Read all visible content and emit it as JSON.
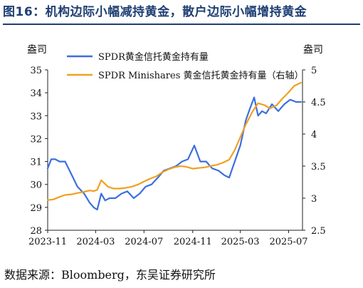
{
  "figure": {
    "title": "图16：机构边际小幅减持黄金，散户边际小幅增持黄金",
    "source": "数据来源：Bloomberg，东吴证券研究所"
  },
  "chart_data": {
    "type": "line",
    "left_axis_label": "盎司",
    "right_axis_label": "盎司",
    "ylim_left": [
      28,
      35
    ],
    "ylim_right": [
      2.5,
      5
    ],
    "yticks_left": [
      "35",
      "34",
      "33",
      "32",
      "31",
      "30",
      "29",
      "28"
    ],
    "yticks_right": [
      "5",
      "4.5",
      "4",
      "3.5",
      "3",
      "2.5"
    ],
    "xlim": [
      "2023-11-01",
      "2025-08-05"
    ],
    "xticks": [
      "2023-11",
      "2024-03",
      "2024-07",
      "2024-11",
      "2025-03",
      "2025-07"
    ],
    "grid": false,
    "legend": "top-left",
    "series": [
      {
        "name": "SPDR黄金信托黄金持有量",
        "axis": "left",
        "color": "#3c6fe0",
        "x": [
          "2023-11-01",
          "2023-11-10",
          "2023-11-20",
          "2023-12-01",
          "2023-12-15",
          "2024-01-01",
          "2024-01-15",
          "2024-02-01",
          "2024-02-15",
          "2024-02-25",
          "2024-03-05",
          "2024-03-15",
          "2024-03-25",
          "2024-04-05",
          "2024-04-20",
          "2024-05-05",
          "2024-05-20",
          "2024-06-05",
          "2024-06-20",
          "2024-07-05",
          "2024-07-20",
          "2024-08-05",
          "2024-08-20",
          "2024-09-05",
          "2024-09-20",
          "2024-10-05",
          "2024-10-20",
          "2024-11-05",
          "2024-11-20",
          "2024-12-05",
          "2024-12-20",
          "2025-01-05",
          "2025-01-20",
          "2025-02-01",
          "2025-02-15",
          "2025-03-01",
          "2025-03-15",
          "2025-03-25",
          "2025-04-05",
          "2025-04-15",
          "2025-04-25",
          "2025-05-05",
          "2025-05-20",
          "2025-06-05",
          "2025-06-20",
          "2025-07-05",
          "2025-07-20",
          "2025-08-01"
        ],
        "values": [
          30.7,
          31.1,
          31.1,
          31.0,
          31.0,
          30.4,
          29.9,
          29.6,
          29.2,
          29.0,
          28.9,
          29.6,
          29.3,
          29.4,
          29.4,
          29.6,
          29.7,
          29.4,
          29.6,
          29.9,
          30.0,
          30.3,
          30.6,
          30.7,
          30.8,
          31.0,
          31.1,
          31.7,
          31.0,
          31.0,
          30.7,
          30.6,
          30.4,
          30.3,
          31.0,
          31.7,
          32.8,
          33.3,
          33.8,
          33.0,
          33.2,
          33.1,
          33.5,
          33.2,
          33.5,
          33.7,
          33.6,
          33.6
        ]
      },
      {
        "name": "SPDR Minishares 黄金信托黄金持有量（右轴）",
        "axis": "right",
        "color": "#f0a020",
        "x": [
          "2023-11-01",
          "2023-11-15",
          "2023-12-01",
          "2023-12-15",
          "2024-01-01",
          "2024-01-15",
          "2024-02-01",
          "2024-02-15",
          "2024-02-25",
          "2024-03-05",
          "2024-03-15",
          "2024-04-01",
          "2024-04-15",
          "2024-05-01",
          "2024-05-15",
          "2024-06-01",
          "2024-06-15",
          "2024-07-01",
          "2024-07-15",
          "2024-08-01",
          "2024-08-15",
          "2024-09-01",
          "2024-09-15",
          "2024-10-01",
          "2024-10-15",
          "2024-11-01",
          "2024-11-15",
          "2024-12-01",
          "2024-12-15",
          "2025-01-01",
          "2025-01-15",
          "2025-02-01",
          "2025-02-15",
          "2025-03-01",
          "2025-03-15",
          "2025-04-01",
          "2025-04-15",
          "2025-05-01",
          "2025-05-15",
          "2025-06-01",
          "2025-06-15",
          "2025-07-01",
          "2025-07-15",
          "2025-08-01"
        ],
        "values": [
          2.97,
          2.98,
          3.02,
          3.05,
          3.06,
          3.08,
          3.1,
          3.12,
          3.11,
          3.13,
          3.28,
          3.18,
          3.15,
          3.15,
          3.16,
          3.18,
          3.21,
          3.26,
          3.3,
          3.34,
          3.4,
          3.45,
          3.48,
          3.5,
          3.49,
          3.46,
          3.47,
          3.48,
          3.5,
          3.52,
          3.55,
          3.6,
          3.75,
          3.95,
          4.15,
          4.35,
          4.48,
          4.45,
          4.4,
          4.45,
          4.55,
          4.65,
          4.75,
          4.8
        ]
      }
    ]
  }
}
